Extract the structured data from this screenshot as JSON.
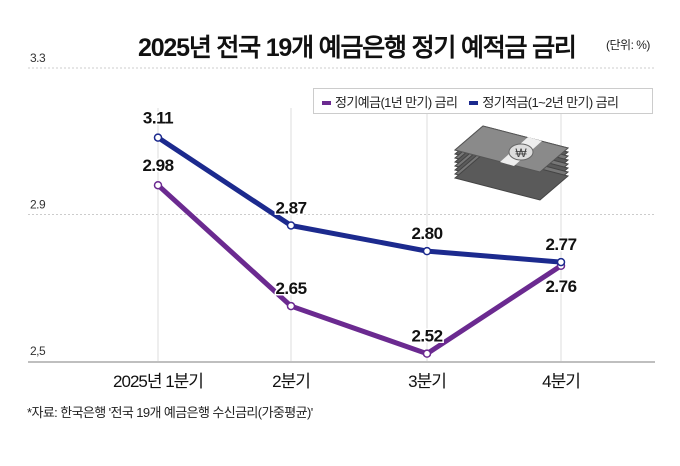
{
  "title": "2025년 전국 19개 예금은행 정기 예적금 금리",
  "unit": "(단위: %)",
  "source": "*자료: 한국은행 '전국 19개 예금은행 수신금리(가중평균)'",
  "chart_data": {
    "type": "line",
    "title": "2025년 전국 19개 예금은행 정기 예적금 금리",
    "categories": [
      "2025년 1분기",
      "2분기",
      "3분기",
      "4분기"
    ],
    "ylim": [
      2.5,
      3.3
    ],
    "yticks": [
      "2.5",
      "2.9",
      "3.3"
    ],
    "grid": true,
    "legend_position": "top-right",
    "series": [
      {
        "name": "정기예금(1년 만기) 금리",
        "color": "#6b2a90",
        "values": [
          2.98,
          2.65,
          2.52,
          2.76
        ],
        "labels": [
          "2.98",
          "2.65",
          "2.52",
          "2.76"
        ]
      },
      {
        "name": "정기적금(1~2년 만기) 금리",
        "color": "#1c2a8e",
        "values": [
          3.11,
          2.87,
          2.8,
          2.77
        ],
        "labels": [
          "3.11",
          "2.87",
          "2.80",
          "2.77"
        ]
      }
    ]
  },
  "icon": "money-stack-icon"
}
